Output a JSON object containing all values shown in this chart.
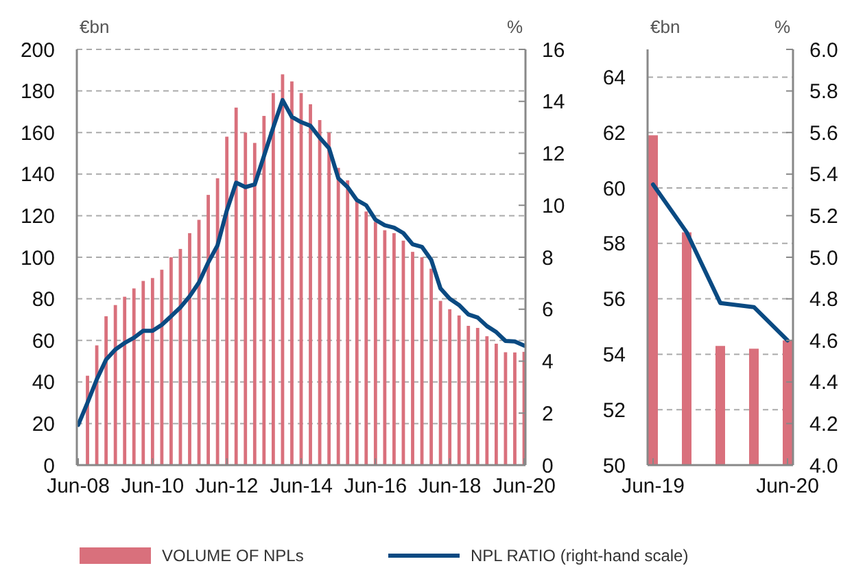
{
  "chart_data": [
    {
      "type": "bar",
      "ylabel": "€bn",
      "y2label": "%",
      "categories": [
        "Jun-08",
        null,
        null,
        null,
        null,
        null,
        null,
        null,
        "Jun-10",
        null,
        null,
        null,
        null,
        null,
        null,
        null,
        "Jun-12",
        null,
        null,
        null,
        null,
        null,
        null,
        null,
        "Jun-14",
        null,
        null,
        null,
        null,
        null,
        null,
        null,
        "Jun-16",
        null,
        null,
        null,
        null,
        null,
        null,
        null,
        "Jun-18",
        null,
        null,
        null,
        null,
        null,
        null,
        null,
        "Jun-20"
      ],
      "series": [
        {
          "name": "VOLUME OF NPLs",
          "color": "#d9707c",
          "values": [
            null,
            43,
            57.6,
            71.6,
            77,
            81,
            85,
            88.6,
            90,
            94,
            100,
            104,
            111.6,
            118,
            130,
            138,
            158,
            172,
            160,
            155,
            168,
            179,
            188,
            184.6,
            179,
            173.6,
            166,
            160,
            143,
            137,
            127.5,
            122,
            117,
            113,
            111.6,
            108,
            102.6,
            100,
            94.5,
            79,
            75,
            72,
            67,
            66,
            62,
            58.4,
            54.3,
            54.2,
            54.5
          ]
        },
        {
          "name": "NPL RATIO (right-hand scale)",
          "type": "line",
          "axis": "y2",
          "color": "#0a4a82",
          "values": [
            1.55,
            2.4,
            3.3,
            4.06,
            4.45,
            4.7,
            4.9,
            5.17,
            5.17,
            5.4,
            5.73,
            6.07,
            6.5,
            7.03,
            7.8,
            8.46,
            9.8,
            10.87,
            10.7,
            10.8,
            11.9,
            13.0,
            14.05,
            13.4,
            13.2,
            13.06,
            12.6,
            12.2,
            11.04,
            10.7,
            10.2,
            10.0,
            9.44,
            9.23,
            9.14,
            8.93,
            8.5,
            8.4,
            7.9,
            6.8,
            6.4,
            6.16,
            5.8,
            5.68,
            5.35,
            5.12,
            4.78,
            4.76,
            4.6
          ]
        }
      ],
      "ylim": [
        0,
        200
      ],
      "yticks": [
        0,
        20,
        40,
        60,
        80,
        100,
        120,
        140,
        160,
        180,
        200
      ],
      "y2lim": [
        0,
        16
      ],
      "y2ticks": [
        0,
        2,
        4,
        6,
        8,
        10,
        12,
        14,
        16
      ],
      "grid": "y",
      "legend": "bottom"
    },
    {
      "type": "bar",
      "ylabel": "€bn",
      "y2label": "%",
      "categories": [
        "Jun-19",
        null,
        null,
        null,
        "Jun-20"
      ],
      "series": [
        {
          "color": "#d9707c",
          "values": [
            61.9,
            58.4,
            54.3,
            54.2,
            54.5
          ]
        },
        {
          "type": "line",
          "axis": "y2",
          "color": "#0a4a82",
          "values": [
            5.35,
            5.12,
            4.78,
            4.76,
            4.6
          ]
        }
      ],
      "ylim": [
        50,
        65
      ],
      "yticks": [
        50,
        52,
        54,
        56,
        58,
        60,
        62,
        64
      ],
      "y2lim": [
        4,
        6
      ],
      "y2ticks": [
        {
          "value": 4,
          "label": "4.0"
        },
        4.2,
        4.4,
        4.6,
        4.8,
        {
          "value": 5,
          "label": "5.0"
        },
        5.2,
        5.4,
        5.6,
        5.8,
        {
          "value": 6,
          "label": "6.0"
        }
      ],
      "grid": "y",
      "legend": false
    }
  ]
}
